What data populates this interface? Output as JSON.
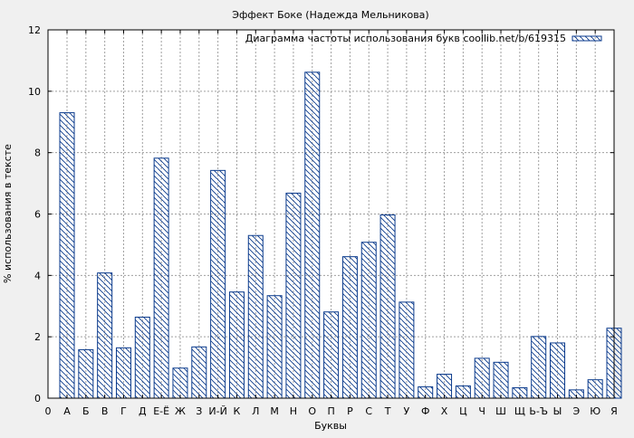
{
  "chart_data": {
    "type": "bar",
    "title": "Эффект Боке (Надежда Мельникова)",
    "xlabel": "Буквы",
    "ylabel": "% использования в тексте",
    "legend": {
      "label": "Диаграмма частоты использования букв coollib.net/b/619315",
      "position": "top-right"
    },
    "x_zero_label": "0",
    "categories": [
      "А",
      "Б",
      "В",
      "Г",
      "Д",
      "Е-Ё",
      "Ж",
      "З",
      "И-Й",
      "К",
      "Л",
      "М",
      "Н",
      "О",
      "П",
      "Р",
      "С",
      "Т",
      "У",
      "Ф",
      "Х",
      "Ц",
      "Ч",
      "Ш",
      "Щ",
      "Ь-Ъ",
      "Ы",
      "Э",
      "Ю",
      "Я"
    ],
    "values": [
      9.3,
      1.58,
      4.08,
      1.64,
      2.64,
      7.82,
      0.98,
      1.67,
      7.42,
      3.46,
      5.3,
      3.34,
      6.68,
      10.62,
      2.81,
      4.61,
      5.08,
      5.97,
      3.13,
      0.37,
      0.78,
      0.4,
      1.3,
      1.17,
      0.34,
      2.01,
      1.8,
      0.27,
      0.6,
      2.28
    ],
    "ylim": [
      0,
      12
    ],
    "yticks": [
      0,
      2,
      4,
      6,
      8,
      10,
      12
    ],
    "grid": true,
    "colors": {
      "bar_stroke": "#0a3a8c",
      "bar_hatch": "#0a3a8c",
      "background": "#f0f0f0",
      "plot_background": "#ffffff",
      "grid": "#a0a0a0"
    }
  }
}
